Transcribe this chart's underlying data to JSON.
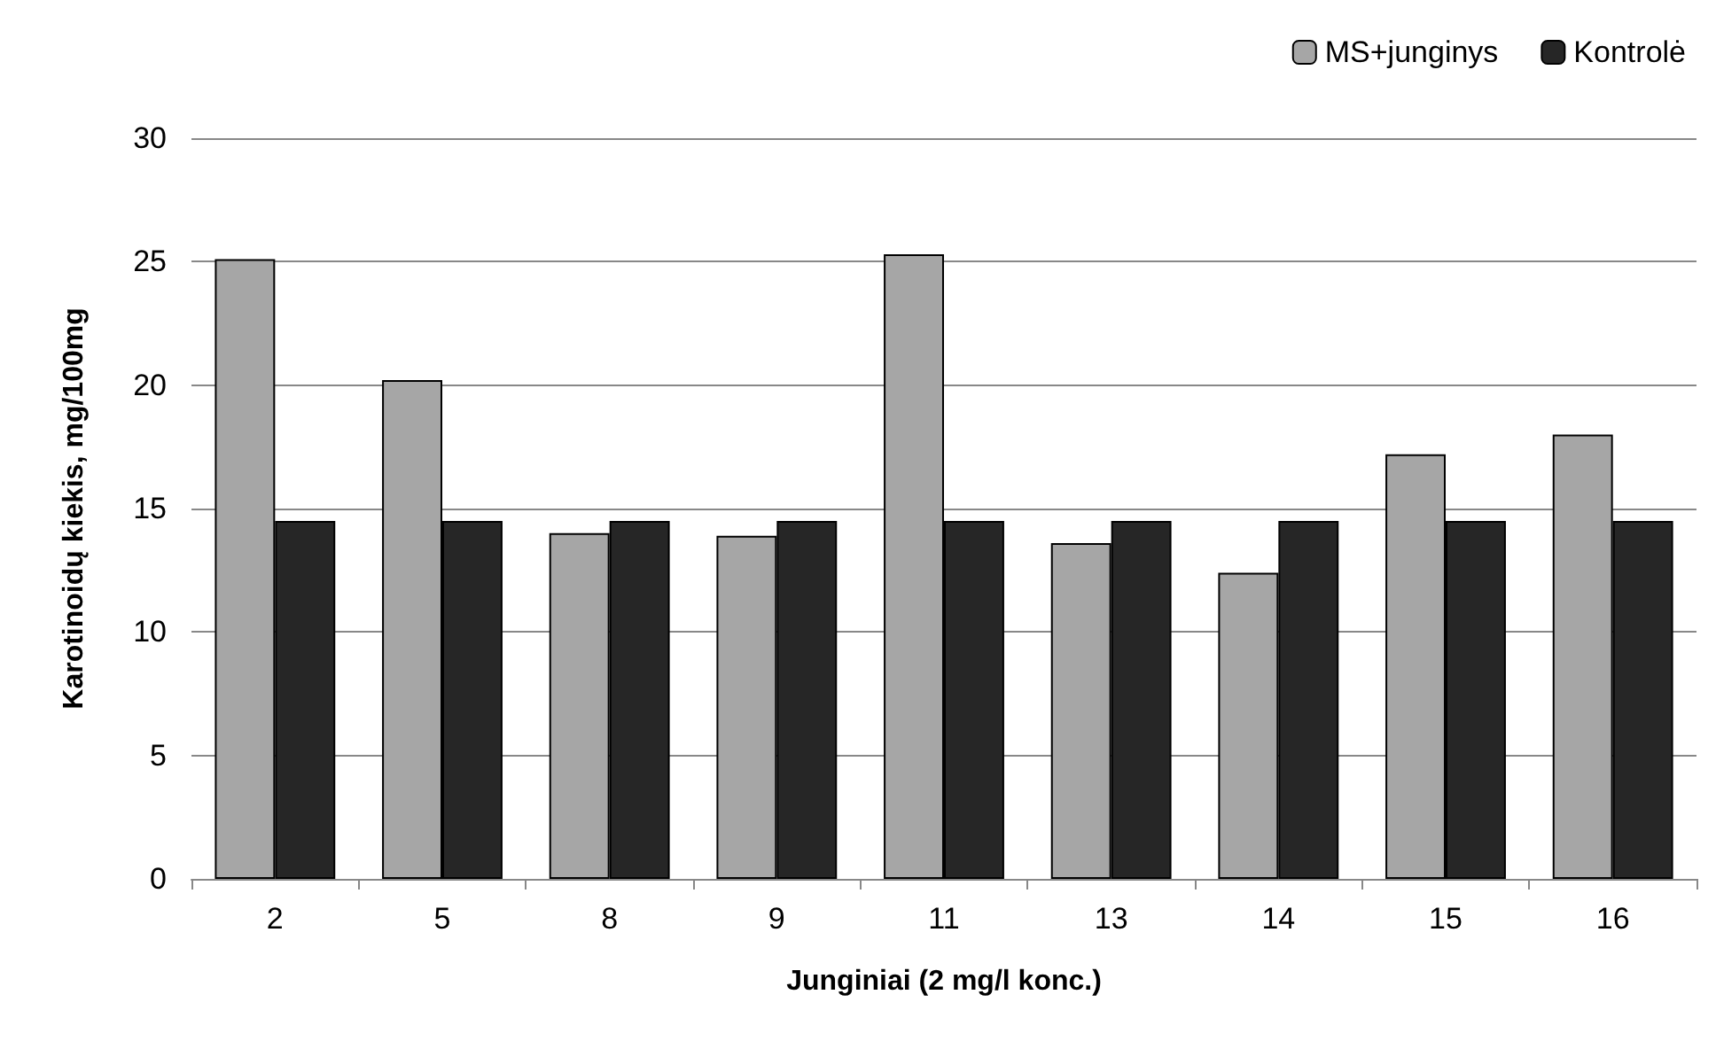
{
  "chart_data": {
    "type": "bar",
    "xlabel": "Junginiai (2 mg/l konc.)",
    "ylabel": "Karotinoidų kiekis, mg/100mg",
    "categories": [
      "2",
      "5",
      "8",
      "9",
      "11",
      "13",
      "14",
      "15",
      "16"
    ],
    "series": [
      {
        "name": "MS+junginys",
        "color": "#a6a6a6",
        "values": [
          25.1,
          20.2,
          14.0,
          13.9,
          25.3,
          13.6,
          12.4,
          17.2,
          18.0
        ]
      },
      {
        "name": "Kontrolė",
        "color": "#262626",
        "values": [
          14.5,
          14.5,
          14.5,
          14.5,
          14.5,
          14.5,
          14.5,
          14.5,
          14.5
        ]
      }
    ],
    "ylim": [
      0,
      30
    ],
    "yticks": [
      0,
      5,
      10,
      15,
      20,
      25,
      30
    ],
    "grid": "y",
    "legend": "top right"
  }
}
